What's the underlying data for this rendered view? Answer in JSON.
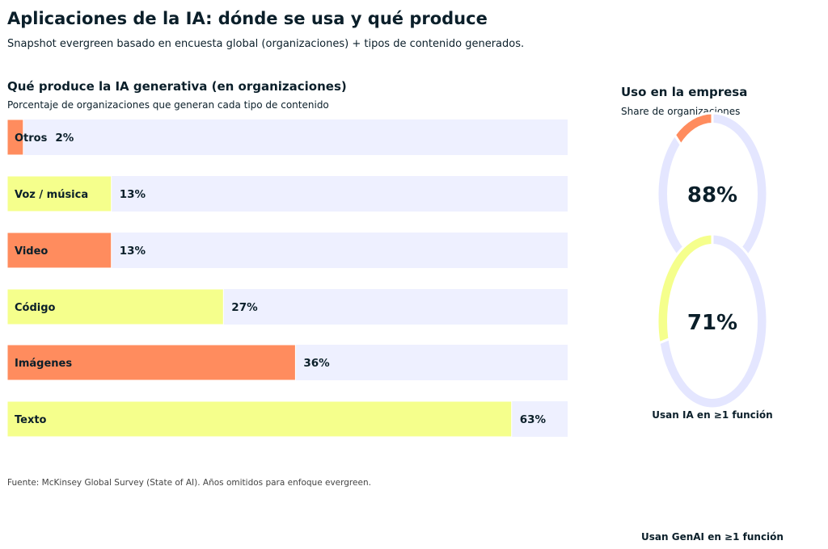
{
  "title": "Aplicaciones de la IA: dónde se usa y qué produce",
  "subtitle": "Snapshot evergreen basado en encuesta global (organizaciones) + tipos de contenido generados.",
  "source": "Fuente: McKinsey Global Survey (State of AI). Años omitidos para enfoque evergreen.",
  "colors": {
    "orange": "#ff8c5e",
    "yellow": "#f5ff8c",
    "track": "#eef0ff",
    "ring_track": "#e4e6ff",
    "text": "#0b1f2a"
  },
  "chart_data": [
    {
      "type": "bar",
      "orientation": "horizontal",
      "title": "Qué produce la IA generativa (en organizaciones)",
      "subtitle": "Porcentaje de organizaciones que generan cada tipo de contenido",
      "categories": [
        "Otros",
        "Voz / música",
        "Video",
        "Código",
        "Imágenes",
        "Texto"
      ],
      "values": [
        2,
        13,
        13,
        27,
        36,
        63
      ],
      "value_labels": [
        "2%",
        "13%",
        "13%",
        "27%",
        "36%",
        "63%"
      ],
      "bar_colors": [
        "#ff8c5e",
        "#f5ff8c",
        "#ff8c5e",
        "#f5ff8c",
        "#ff8c5e",
        "#f5ff8c"
      ],
      "xlim": [
        0,
        70
      ],
      "grid": false
    },
    {
      "type": "pie",
      "title": "Uso en la empresa",
      "subtitle": "Share de organizaciones",
      "donuts": [
        {
          "label": "Usan IA en ≥1 función",
          "value": 88,
          "center_label": "88%",
          "accent": "#ff8c5e"
        },
        {
          "label": "Usan GenAI en ≥1 función",
          "value": 71,
          "center_label": "71%",
          "accent": "#f5ff8c"
        }
      ]
    }
  ]
}
